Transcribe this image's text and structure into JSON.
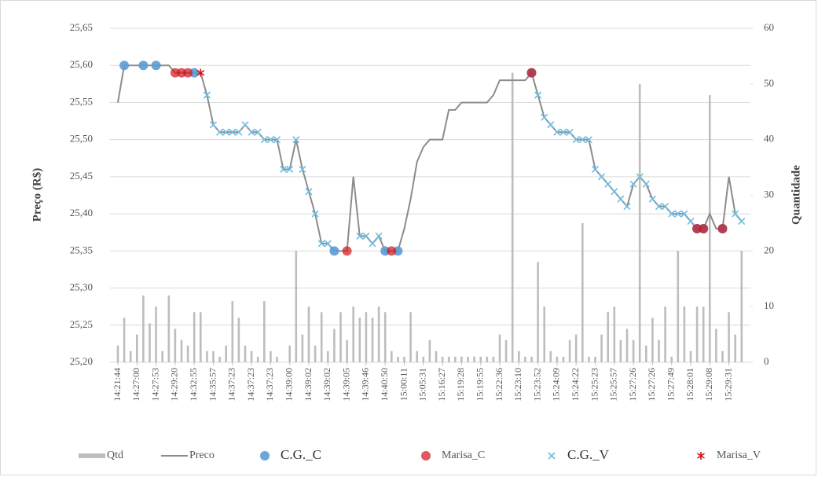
{
  "chart_data": {
    "type": "bar-line",
    "ylabel": "Preço (R$)",
    "y2label": "Quantidade",
    "ylim": [
      25.2,
      25.65
    ],
    "yticks": [
      {
        "value": 25.2,
        "label": "25,20"
      },
      {
        "value": 25.25,
        "label": "25,25"
      },
      {
        "value": 25.3,
        "label": "25,30"
      },
      {
        "value": 25.35,
        "label": "25,35"
      },
      {
        "value": 25.4,
        "label": "25,40"
      },
      {
        "value": 25.45,
        "label": "25,45"
      },
      {
        "value": 25.5,
        "label": "25,50"
      },
      {
        "value": 25.55,
        "label": "25,55"
      },
      {
        "value": 25.6,
        "label": "25,60"
      },
      {
        "value": 25.65,
        "label": "25,65"
      }
    ],
    "y2lim": [
      0,
      60
    ],
    "y2ticks": [
      0,
      10,
      20,
      30,
      40,
      50,
      60
    ],
    "grid": true,
    "legend": "bottom",
    "categories": [
      "14:21:44",
      null,
      null,
      "14:27:00",
      null,
      null,
      "14:27:53",
      null,
      null,
      "14:29:20",
      null,
      null,
      "14:32:55",
      null,
      null,
      "14:35:57",
      null,
      null,
      "14:37:23",
      null,
      null,
      "14:37:23",
      null,
      null,
      "14:37:23",
      null,
      null,
      "14:39:00",
      null,
      null,
      "14:39:02",
      null,
      null,
      "14:39:02",
      null,
      null,
      "14:39:05",
      null,
      null,
      "14:39:46",
      null,
      null,
      "14:40:50",
      null,
      null,
      "15:00:11",
      null,
      null,
      "15:05:31",
      null,
      null,
      "15:16:27",
      null,
      null,
      "15:19:28",
      null,
      null,
      "15:19:55",
      null,
      null,
      "15:22:36",
      null,
      null,
      "15:23:10",
      null,
      null,
      "15:23:52",
      null,
      null,
      "15:24:09",
      null,
      null,
      "15:24:22",
      null,
      null,
      "15:25:23",
      null,
      null,
      "15:25:57",
      null,
      null,
      "15:27:26",
      null,
      null,
      "15:27:26",
      null,
      null,
      "15:27:49",
      null,
      null,
      "15:28:01",
      null,
      null,
      "15:29:08",
      null,
      null,
      "15:29:31",
      null,
      null
    ],
    "series": [
      {
        "name": "Qtd",
        "type": "bar",
        "axis": "y2",
        "color": "#bdbdbd",
        "values": [
          3,
          8,
          2,
          5,
          12,
          7,
          10,
          2,
          12,
          6,
          4,
          3,
          9,
          9,
          2,
          2,
          1,
          3,
          11,
          8,
          3,
          2,
          1,
          11,
          2,
          1,
          0,
          3,
          20,
          5,
          10,
          3,
          9,
          2,
          6,
          9,
          4,
          10,
          8,
          9,
          8,
          10,
          9,
          2,
          1,
          1,
          9,
          2,
          1,
          4,
          2,
          1,
          1,
          1,
          1,
          1,
          1,
          1,
          1,
          1,
          5,
          4,
          52,
          2,
          1,
          1,
          18,
          10,
          2,
          1,
          1,
          4,
          5,
          25,
          1,
          1,
          5,
          9,
          10,
          4,
          6,
          4,
          50,
          3,
          8,
          4,
          10,
          1,
          20,
          10,
          2,
          10,
          10,
          48,
          6,
          2,
          9,
          5,
          20
        ]
      },
      {
        "name": "Preco",
        "type": "line",
        "color": "#8c8c8c",
        "values": [
          25.55,
          25.6,
          25.6,
          25.6,
          25.6,
          25.6,
          25.6,
          25.6,
          25.6,
          25.59,
          25.59,
          25.59,
          25.59,
          25.59,
          25.56,
          25.52,
          25.51,
          25.51,
          25.51,
          25.51,
          25.52,
          25.51,
          25.51,
          25.5,
          25.5,
          25.5,
          25.46,
          25.46,
          25.5,
          25.46,
          25.43,
          25.4,
          25.36,
          25.36,
          25.35,
          25.35,
          25.35,
          25.45,
          25.37,
          25.37,
          25.36,
          25.37,
          25.35,
          25.35,
          25.35,
          25.38,
          25.42,
          25.47,
          25.49,
          25.5,
          25.5,
          25.5,
          25.54,
          25.54,
          25.55,
          25.55,
          25.55,
          25.55,
          25.55,
          25.56,
          25.58,
          25.58,
          25.58,
          25.58,
          25.58,
          25.59,
          25.56,
          25.53,
          25.52,
          25.51,
          25.51,
          25.51,
          25.5,
          25.5,
          25.5,
          25.46,
          25.45,
          25.44,
          25.43,
          25.42,
          25.41,
          25.44,
          25.45,
          25.44,
          25.42,
          25.41,
          25.41,
          25.4,
          25.4,
          25.4,
          25.39,
          25.38,
          25.38,
          25.4,
          25.38,
          25.38,
          25.45,
          25.4,
          25.39
        ]
      },
      {
        "name": "C.G._V",
        "type": "scatter",
        "marker": "x",
        "color": "#6fbde0",
        "values": [
          null,
          null,
          null,
          null,
          null,
          null,
          null,
          null,
          null,
          null,
          null,
          null,
          null,
          null,
          25.56,
          25.52,
          25.51,
          25.51,
          25.51,
          25.51,
          25.52,
          25.51,
          25.51,
          25.5,
          25.5,
          25.5,
          25.46,
          25.46,
          25.5,
          25.46,
          25.43,
          25.4,
          25.36,
          25.36,
          null,
          null,
          null,
          null,
          25.37,
          25.37,
          25.36,
          25.37,
          null,
          null,
          null,
          null,
          null,
          null,
          null,
          null,
          null,
          null,
          null,
          null,
          null,
          null,
          null,
          null,
          null,
          null,
          null,
          null,
          null,
          null,
          null,
          null,
          25.56,
          25.53,
          25.52,
          25.51,
          25.51,
          25.51,
          25.5,
          25.5,
          25.5,
          25.46,
          25.45,
          25.44,
          25.43,
          25.42,
          25.41,
          25.44,
          25.45,
          25.44,
          25.42,
          25.41,
          25.41,
          25.4,
          25.4,
          25.4,
          25.39,
          null,
          null,
          null,
          null,
          null,
          null,
          25.4,
          25.39
        ]
      },
      {
        "name": "C.G._C",
        "type": "scatter",
        "marker": "circle",
        "color": "#5b9bd5",
        "values": [
          null,
          25.6,
          null,
          null,
          25.6,
          null,
          25.6,
          null,
          null,
          null,
          null,
          null,
          25.59,
          null,
          null,
          null,
          null,
          null,
          null,
          null,
          null,
          null,
          null,
          null,
          null,
          null,
          null,
          null,
          null,
          null,
          null,
          null,
          null,
          null,
          25.35,
          null,
          null,
          null,
          null,
          null,
          null,
          null,
          25.35,
          null,
          25.35,
          null,
          null,
          null,
          null,
          null,
          null,
          null,
          null,
          null,
          null,
          null,
          null,
          null,
          null,
          null,
          null,
          null,
          null,
          null,
          null,
          25.59,
          null,
          null,
          null,
          null,
          null,
          null,
          null,
          null,
          null,
          null,
          null,
          null,
          null,
          null,
          null,
          null,
          null,
          null,
          null,
          null,
          null,
          null,
          null,
          null,
          null,
          25.38,
          25.38,
          null,
          null,
          25.38,
          null,
          null,
          null
        ]
      },
      {
        "name": "Marisa_C",
        "type": "scatter",
        "marker": "circle",
        "color": "#d0141a",
        "values": [
          null,
          null,
          null,
          null,
          null,
          null,
          null,
          null,
          null,
          25.59,
          25.59,
          25.59,
          null,
          null,
          null,
          null,
          null,
          null,
          null,
          null,
          null,
          null,
          null,
          null,
          null,
          null,
          null,
          null,
          null,
          null,
          null,
          null,
          null,
          null,
          null,
          null,
          25.35,
          null,
          null,
          null,
          null,
          null,
          null,
          25.35,
          null,
          null,
          null,
          null,
          null,
          null,
          null,
          null,
          null,
          null,
          null,
          null,
          null,
          null,
          null,
          null,
          null,
          null,
          null,
          null,
          null,
          25.59,
          null,
          null,
          null,
          null,
          null,
          null,
          null,
          null,
          null,
          null,
          null,
          null,
          null,
          null,
          null,
          null,
          null,
          null,
          null,
          null,
          null,
          null,
          null,
          null,
          null,
          25.38,
          25.38,
          null,
          null,
          25.38,
          null,
          null,
          null
        ]
      },
      {
        "name": "Marisa_V",
        "type": "scatter",
        "marker": "star",
        "color": "#d0141a",
        "values": [
          null,
          null,
          null,
          null,
          null,
          null,
          null,
          null,
          null,
          null,
          null,
          null,
          null,
          25.59,
          null,
          null,
          null,
          null,
          null,
          null,
          null,
          null,
          null,
          null,
          null,
          null,
          null,
          null,
          null,
          null,
          null,
          null,
          null,
          null,
          null,
          null,
          null,
          null,
          null,
          null,
          null,
          null,
          null,
          null,
          null,
          null,
          null,
          null,
          null,
          null,
          null,
          null,
          null,
          null,
          null,
          null,
          null,
          null,
          null,
          null,
          null,
          null,
          null,
          null,
          null,
          null,
          null,
          null,
          null,
          null,
          null,
          null,
          null,
          null,
          null,
          null,
          null,
          null,
          null,
          null,
          null,
          null,
          null,
          null,
          null,
          null,
          null,
          null,
          null,
          null,
          null,
          null,
          null,
          null,
          null,
          null,
          null,
          null,
          null
        ]
      }
    ]
  }
}
